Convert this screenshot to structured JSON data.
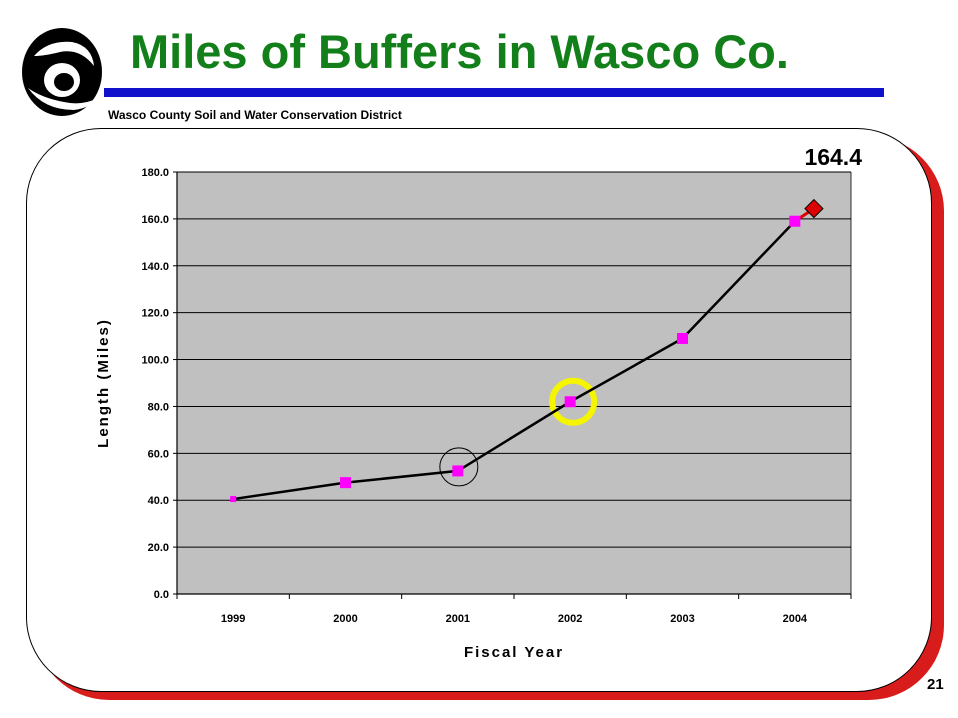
{
  "header": {
    "title": "Miles of Buffers in Wasco Co.",
    "subtitle": "Wasco County  Soil and Water  Conservation  District"
  },
  "page_number": "21",
  "colors": {
    "title": "#137f1a",
    "rule": "#1111cc",
    "frame_shadow": "#d81c1c",
    "plot_bg": "#c0c0c0",
    "marker": "#ff00ff",
    "projection_marker": "#dd0000",
    "highlight_ring": "#f5f500"
  },
  "chart_data": {
    "type": "line",
    "categories": [
      "1999",
      "2000",
      "2001",
      "2002",
      "2003",
      "2004"
    ],
    "series": [
      {
        "values": [
          40.5,
          47.5,
          52.5,
          82.0,
          109.0,
          159.0
        ]
      }
    ],
    "projection": {
      "x_offset": 0.17,
      "value": 164.4,
      "label": "164.4"
    },
    "highlights": [
      {
        "category": "2001",
        "style": "thin-circle"
      },
      {
        "category": "2002",
        "style": "yellow-ring"
      }
    ],
    "xlabel": "Fiscal Year",
    "ylabel": "Length (Miles)",
    "ylim": [
      0,
      180
    ],
    "yticks": [
      "0.0",
      "20.0",
      "40.0",
      "60.0",
      "80.0",
      "100.0",
      "120.0",
      "140.0",
      "160.0",
      "180.0"
    ],
    "grid": true,
    "legend": "none"
  }
}
